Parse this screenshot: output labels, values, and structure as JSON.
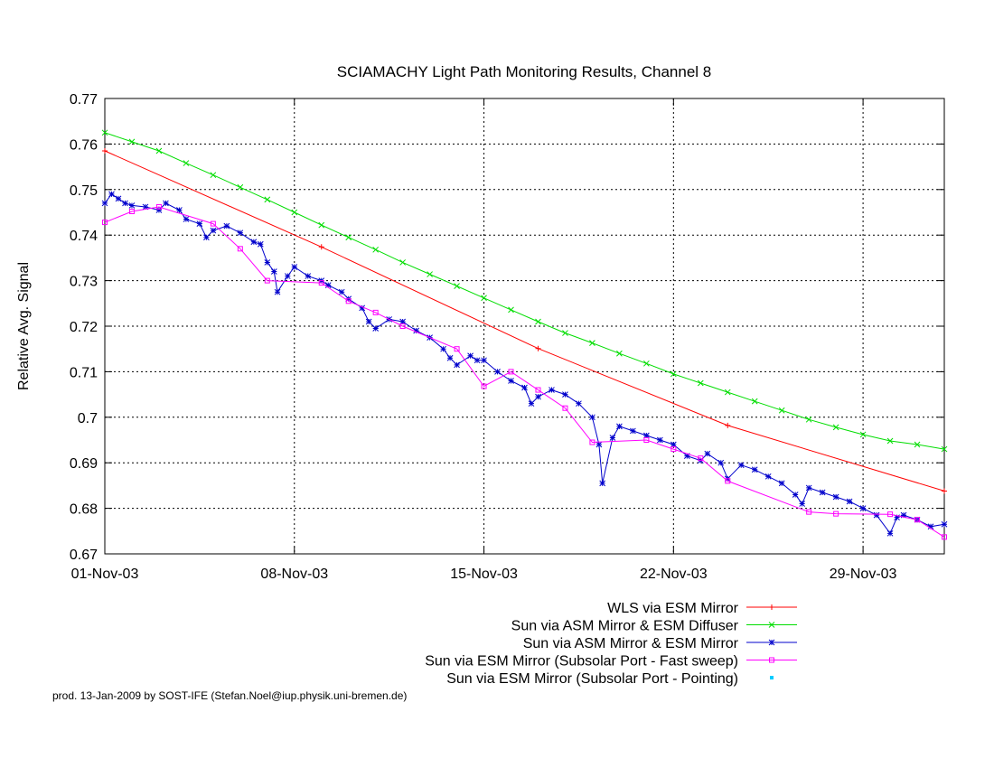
{
  "chart_data": {
    "type": "line",
    "title": "SCIAMACHY Light Path Monitoring Results, Channel 8",
    "xlabel": "",
    "ylabel": "Relative Avg. Signal",
    "x_range": [
      "2003-11-01",
      "2003-12-02"
    ],
    "x_ticks": [
      {
        "date": "2003-11-01",
        "label": "01-Nov-03"
      },
      {
        "date": "2003-11-08",
        "label": "08-Nov-03"
      },
      {
        "date": "2003-11-15",
        "label": "15-Nov-03"
      },
      {
        "date": "2003-11-22",
        "label": "22-Nov-03"
      },
      {
        "date": "2003-11-29",
        "label": "29-Nov-03"
      }
    ],
    "ylim": [
      0.67,
      0.77
    ],
    "y_ticks": [
      "0.67",
      "0.68",
      "0.69",
      "0.7",
      "0.71",
      "0.72",
      "0.73",
      "0.74",
      "0.75",
      "0.76",
      "0.77"
    ],
    "grid": true,
    "legend_position": "bottom-right",
    "series": [
      {
        "name": "WLS via ESM Mirror",
        "color": "#ff0000",
        "marker": "plus",
        "points": [
          [
            "2003-11-01",
            0.7585
          ],
          [
            "2003-11-09",
            0.7374
          ],
          [
            "2003-11-17",
            0.7151
          ],
          [
            "2003-11-24",
            0.6982
          ],
          [
            "2003-12-02",
            0.6838
          ]
        ]
      },
      {
        "name": "Sun via ASM Mirror & ESM Diffuser",
        "color": "#00dd00",
        "marker": "x",
        "points": [
          [
            "2003-11-01",
            0.7625
          ],
          [
            "2003-11-02",
            0.7605
          ],
          [
            "2003-11-03",
            0.7585
          ],
          [
            "2003-11-04",
            0.7558
          ],
          [
            "2003-11-05",
            0.7532
          ],
          [
            "2003-11-06",
            0.7505
          ],
          [
            "2003-11-07",
            0.7478
          ],
          [
            "2003-11-08",
            0.745
          ],
          [
            "2003-11-09",
            0.7422
          ],
          [
            "2003-11-10",
            0.7395
          ],
          [
            "2003-11-11",
            0.7368
          ],
          [
            "2003-11-12",
            0.734
          ],
          [
            "2003-11-13",
            0.7314
          ],
          [
            "2003-11-14",
            0.7288
          ],
          [
            "2003-11-15",
            0.7262
          ],
          [
            "2003-11-16",
            0.7236
          ],
          [
            "2003-11-17",
            0.721
          ],
          [
            "2003-11-18",
            0.7185
          ],
          [
            "2003-11-19",
            0.7163
          ],
          [
            "2003-11-20",
            0.714
          ],
          [
            "2003-11-21",
            0.7118
          ],
          [
            "2003-11-22",
            0.7095
          ],
          [
            "2003-11-23",
            0.7075
          ],
          [
            "2003-11-24",
            0.7055
          ],
          [
            "2003-11-25",
            0.7035
          ],
          [
            "2003-11-26",
            0.7015
          ],
          [
            "2003-11-27",
            0.6995
          ],
          [
            "2003-11-28",
            0.6978
          ],
          [
            "2003-11-29",
            0.6962
          ],
          [
            "2003-11-30",
            0.6948
          ],
          [
            "2003-12-01",
            0.694
          ],
          [
            "2003-12-02",
            0.693
          ]
        ]
      },
      {
        "name": "Sun via ASM Mirror & ESM Mirror",
        "color": "#0000cc",
        "marker": "star",
        "points": [
          [
            "2003-11-01",
            0.747
          ],
          [
            "2003-11-01 06:00",
            0.749
          ],
          [
            "2003-11-01 12:00",
            0.748
          ],
          [
            "2003-11-01 18:00",
            0.747
          ],
          [
            "2003-11-02",
            0.7465
          ],
          [
            "2003-11-02 12:00",
            0.7462
          ],
          [
            "2003-11-03",
            0.7455
          ],
          [
            "2003-11-03 06:00",
            0.747
          ],
          [
            "2003-11-03 18:00",
            0.7455
          ],
          [
            "2003-11-04",
            0.7435
          ],
          [
            "2003-11-04 12:00",
            0.7425
          ],
          [
            "2003-11-04 18:00",
            0.7395
          ],
          [
            "2003-11-05",
            0.741
          ],
          [
            "2003-11-05 12:00",
            0.742
          ],
          [
            "2003-11-06",
            0.7405
          ],
          [
            "2003-11-06 12:00",
            0.7385
          ],
          [
            "2003-11-06 18:00",
            0.738
          ],
          [
            "2003-11-07",
            0.734
          ],
          [
            "2003-11-07 06:00",
            0.732
          ],
          [
            "2003-11-07 09:00",
            0.7275
          ],
          [
            "2003-11-07 18:00",
            0.731
          ],
          [
            "2003-11-08",
            0.733
          ],
          [
            "2003-11-08 12:00",
            0.731
          ],
          [
            "2003-11-09",
            0.73
          ],
          [
            "2003-11-09 06:00",
            0.729
          ],
          [
            "2003-11-09 18:00",
            0.7275
          ],
          [
            "2003-11-10",
            0.726
          ],
          [
            "2003-11-10 12:00",
            0.724
          ],
          [
            "2003-11-10 18:00",
            0.721
          ],
          [
            "2003-11-11",
            0.7195
          ],
          [
            "2003-11-11 12:00",
            0.7215
          ],
          [
            "2003-11-12",
            0.721
          ],
          [
            "2003-11-12 12:00",
            0.719
          ],
          [
            "2003-11-13",
            0.7175
          ],
          [
            "2003-11-13 12:00",
            0.715
          ],
          [
            "2003-11-13 18:00",
            0.713
          ],
          [
            "2003-11-14",
            0.7115
          ],
          [
            "2003-11-14 12:00",
            0.7135
          ],
          [
            "2003-11-14 18:00",
            0.7125
          ],
          [
            "2003-11-15",
            0.7125
          ],
          [
            "2003-11-15 12:00",
            0.71
          ],
          [
            "2003-11-16",
            0.708
          ],
          [
            "2003-11-16 12:00",
            0.7065
          ],
          [
            "2003-11-16 18:00",
            0.703
          ],
          [
            "2003-11-17",
            0.7045
          ],
          [
            "2003-11-17 12:00",
            0.706
          ],
          [
            "2003-11-18",
            0.705
          ],
          [
            "2003-11-18 12:00",
            0.703
          ],
          [
            "2003-11-19",
            0.7
          ],
          [
            "2003-11-19 06:00",
            0.694
          ],
          [
            "2003-11-19 09:00",
            0.6855
          ],
          [
            "2003-11-19 18:00",
            0.6955
          ],
          [
            "2003-11-20",
            0.698
          ],
          [
            "2003-11-20 12:00",
            0.697
          ],
          [
            "2003-11-21",
            0.696
          ],
          [
            "2003-11-21 12:00",
            0.695
          ],
          [
            "2003-11-22",
            0.694
          ],
          [
            "2003-11-22 12:00",
            0.6915
          ],
          [
            "2003-11-23",
            0.6905
          ],
          [
            "2003-11-23 06:00",
            0.692
          ],
          [
            "2003-11-23 18:00",
            0.69
          ],
          [
            "2003-11-24",
            0.6865
          ],
          [
            "2003-11-24 12:00",
            0.6895
          ],
          [
            "2003-11-25",
            0.6885
          ],
          [
            "2003-11-25 12:00",
            0.687
          ],
          [
            "2003-11-26",
            0.6855
          ],
          [
            "2003-11-26 12:00",
            0.683
          ],
          [
            "2003-11-26 18:00",
            0.681
          ],
          [
            "2003-11-27",
            0.6845
          ],
          [
            "2003-11-27 12:00",
            0.6835
          ],
          [
            "2003-11-28",
            0.6825
          ],
          [
            "2003-11-28 12:00",
            0.6815
          ],
          [
            "2003-11-29",
            0.68
          ],
          [
            "2003-11-29 12:00",
            0.6785
          ],
          [
            "2003-11-30",
            0.6745
          ],
          [
            "2003-11-30 06:00",
            0.678
          ],
          [
            "2003-11-30 12:00",
            0.6785
          ],
          [
            "2003-12-01",
            0.6775
          ],
          [
            "2003-12-01 12:00",
            0.676
          ],
          [
            "2003-12-02",
            0.6765
          ]
        ]
      },
      {
        "name": "Sun via ESM Mirror (Subsolar Port - Fast sweep)",
        "color": "#ff00ff",
        "marker": "square",
        "points": [
          [
            "2003-11-01",
            0.7428
          ],
          [
            "2003-11-02",
            0.7452
          ],
          [
            "2003-11-03",
            0.7462
          ],
          [
            "2003-11-05",
            0.7425
          ],
          [
            "2003-11-06",
            0.737
          ],
          [
            "2003-11-07",
            0.73
          ],
          [
            "2003-11-09",
            0.7295
          ],
          [
            "2003-11-10",
            0.7255
          ],
          [
            "2003-11-11",
            0.723
          ],
          [
            "2003-11-12",
            0.72
          ],
          [
            "2003-11-14",
            0.715
          ],
          [
            "2003-11-15",
            0.7068
          ],
          [
            "2003-11-16",
            0.71
          ],
          [
            "2003-11-17",
            0.706
          ],
          [
            "2003-11-18",
            0.702
          ],
          [
            "2003-11-19",
            0.6945
          ],
          [
            "2003-11-21",
            0.695
          ],
          [
            "2003-11-22",
            0.693
          ],
          [
            "2003-11-23",
            0.691
          ],
          [
            "2003-11-24",
            0.686
          ],
          [
            "2003-11-27",
            0.6792
          ],
          [
            "2003-11-28",
            0.6788
          ],
          [
            "2003-11-30",
            0.6787
          ],
          [
            "2003-12-01",
            0.6775
          ],
          [
            "2003-12-02",
            0.6737
          ]
        ]
      },
      {
        "name": "Sun via ESM Mirror (Subsolar Port - Pointing)",
        "color": "#00ccff",
        "marker": "dot",
        "points": []
      }
    ]
  },
  "footer": "prod. 13-Jan-2009 by SOST-IFE (Stefan.Noel@iup.physik.uni-bremen.de)"
}
